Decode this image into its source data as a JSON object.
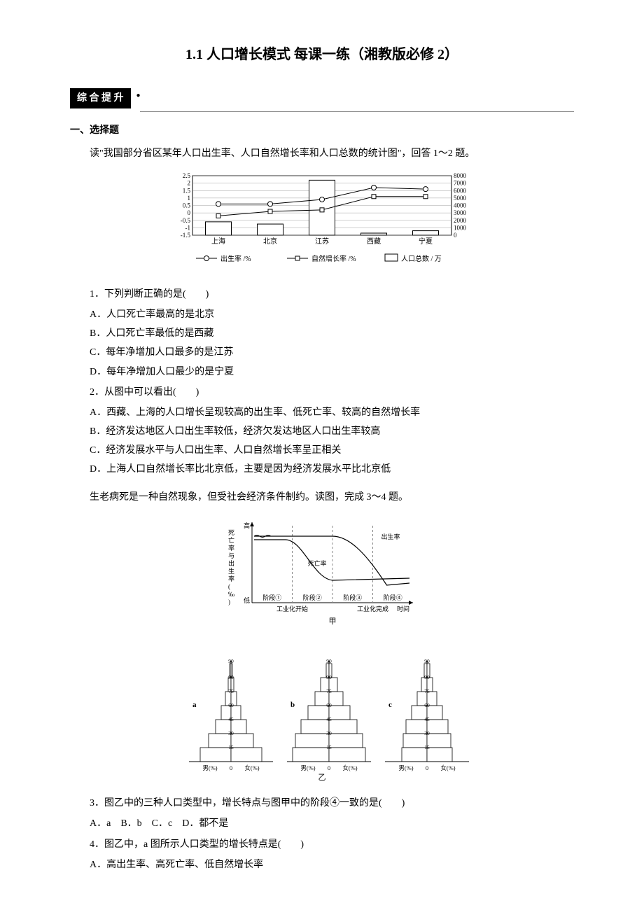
{
  "title": "1.1 人口增长模式 每课一练（湘教版必修 2）",
  "section_badge": "综 合 提 升",
  "heading_mc": "一、选择题",
  "intro1": "读\"我国部分省区某年人口出生率、人口自然增长率和人口总数的统计图\"，回答 1～2 题。",
  "chart1": {
    "regions": [
      "上海",
      "北京",
      "江苏",
      "西藏",
      "宁夏"
    ],
    "birth_rate": [
      0.6,
      0.6,
      0.9,
      1.7,
      1.6
    ],
    "nat_growth": [
      -0.2,
      0.1,
      0.2,
      1.1,
      1.1
    ],
    "population": [
      1800,
      1500,
      7400,
      280,
      600
    ],
    "y_left": {
      "min": -1.5,
      "max": 2.5,
      "ticks": [
        -1.5,
        -1,
        -0.5,
        0,
        0.5,
        1,
        1.5,
        2,
        2.5
      ]
    },
    "y_right": {
      "min": 0,
      "max": 8000,
      "ticks": [
        0,
        1000,
        2000,
        3000,
        4000,
        5000,
        6000,
        7000,
        8000
      ]
    },
    "legend": {
      "birth": "出生率 /%",
      "nat": "自然增长率 /%",
      "pop": "人口总数 / 万"
    },
    "colors": {
      "birth_marker": "#ffffff",
      "nat_marker": "#ffffff",
      "line": "#000000",
      "bar": "#ffffff",
      "border": "#000000",
      "grid": "#888888"
    },
    "font": {
      "axis": 9,
      "legend": 10
    }
  },
  "q1": "1．下列判断正确的是(　　)",
  "q1_opts": [
    "A．人口死亡率最高的是北京",
    "B．人口死亡率最低的是西藏",
    "C．每年净增加人口最多的是江苏",
    "D．每年净增加人口最少的是宁夏"
  ],
  "q2": "2．从图中可以看出(　　)",
  "q2_opts": [
    "A．西藏、上海的人口增长呈现较高的出生率、低死亡率、较高的自然增长率",
    "B．经济发达地区人口出生率较低，经济欠发达地区人口出生率较高",
    "C．经济发展水平与人口出生率、人口自然增长率呈正相关",
    "D．上海人口自然增长率比北京低，主要是因为经济发展水平比北京低"
  ],
  "intro2": "生老病死是一种自然现象，但受社会经济条件制约。读图，完成 3～4 题。",
  "chart2a": {
    "ylabel": "死亡率与出生率(‰)",
    "y_high": "高",
    "y_low": "低",
    "xlabel": "时间",
    "stages": [
      "阶段①",
      "阶段②",
      "阶段③",
      "阶段④"
    ],
    "marks": {
      "ind_start": "工业化开始",
      "ind_end": "工业化完成"
    },
    "labels": {
      "birth": "出生率",
      "death": "死亡率"
    },
    "title": "甲",
    "colors": {
      "line": "#000000",
      "grid": "#888888",
      "bg": "#ffffff"
    },
    "font": {
      "label": 10,
      "axis": 9
    }
  },
  "chart2b": {
    "pyramids": [
      {
        "id": "a",
        "ages": [
          90,
          75,
          60,
          45,
          30,
          15
        ],
        "widths": [
          2,
          4,
          8,
          14,
          22,
          32,
          44
        ]
      },
      {
        "id": "b",
        "ages": [
          90,
          75,
          60,
          45,
          30,
          15
        ],
        "widths": [
          4,
          12,
          20,
          30,
          40,
          48,
          52
        ]
      },
      {
        "id": "c",
        "ages": [
          90,
          75,
          60,
          45,
          30,
          15
        ],
        "widths": [
          4,
          8,
          14,
          22,
          30,
          34,
          36
        ]
      }
    ],
    "xlabel_left": "男(%)",
    "xlabel_right": "女(%)",
    "title": "乙",
    "colors": {
      "fill": "#ffffff",
      "border": "#000000"
    },
    "font": {
      "label": 9
    }
  },
  "q3": "3．图乙中的三种人口类型中，增长特点与图甲中的阶段④一致的是(　　)",
  "q3_opts": "A．a　B．b　C．c　D．都不是",
  "q4": "4．图乙中，a 图所示人口类型的增长特点是(　　)",
  "q4_opts": [
    "A．高出生率、高死亡率、低自然增长率"
  ]
}
